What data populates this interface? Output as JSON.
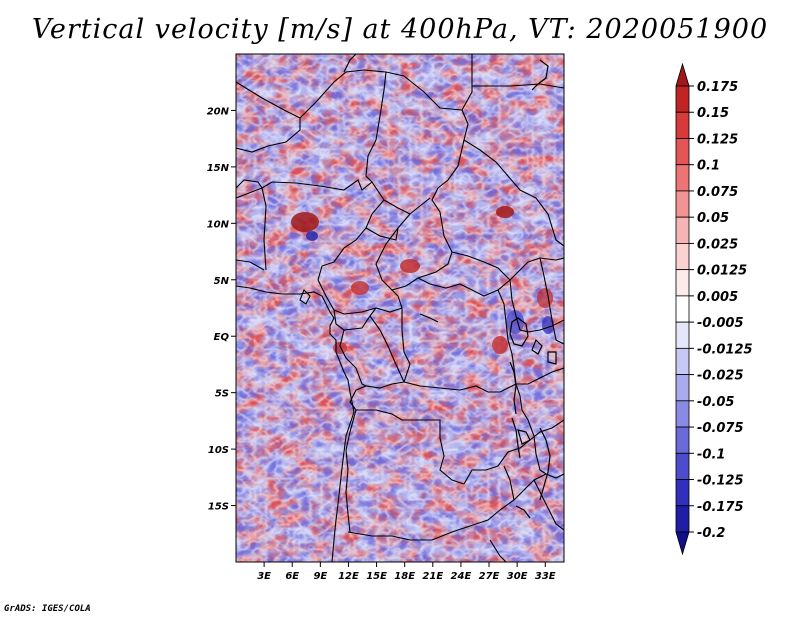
{
  "title": "Vertical velocity [m/s] at 400hPa, VT: 2020051900",
  "credit": "GrADS: IGES/COLA",
  "map": {
    "lon_range": [
      0,
      35
    ],
    "lat_range": [
      -20,
      25
    ],
    "lat_ticks": [
      {
        "value": 20,
        "label": "20N"
      },
      {
        "value": 15,
        "label": "15N"
      },
      {
        "value": 10,
        "label": "10N"
      },
      {
        "value": 5,
        "label": "5N"
      },
      {
        "value": 0,
        "label": "EQ"
      },
      {
        "value": -5,
        "label": "5S"
      },
      {
        "value": -10,
        "label": "10S"
      },
      {
        "value": -15,
        "label": "15S"
      }
    ],
    "lon_ticks": [
      {
        "value": 3,
        "label": "3E"
      },
      {
        "value": 6,
        "label": "6E"
      },
      {
        "value": 9,
        "label": "9E"
      },
      {
        "value": 12,
        "label": "12E"
      },
      {
        "value": 15,
        "label": "15E"
      },
      {
        "value": 18,
        "label": "18E"
      },
      {
        "value": 21,
        "label": "21E"
      },
      {
        "value": 24,
        "label": "24E"
      },
      {
        "value": 27,
        "label": "27E"
      },
      {
        "value": 30,
        "label": "30E"
      },
      {
        "value": 33,
        "label": "33E"
      }
    ]
  },
  "colorbar": {
    "labels": [
      "0.175",
      "0.15",
      "0.125",
      "0.1",
      "0.075",
      "0.05",
      "0.025",
      "0.0125",
      "0.005",
      "-0.005",
      "-0.0125",
      "-0.025",
      "-0.05",
      "-0.075",
      "-0.1",
      "-0.125",
      "-0.175",
      "-0.2"
    ],
    "colors": [
      "#a01818",
      "#c02424",
      "#d63a3a",
      "#e45555",
      "#ec7474",
      "#f29494",
      "#f6b4b4",
      "#fad2d2",
      "#fdeaea",
      "#ffffff",
      "#e6e6fa",
      "#c8c8f4",
      "#aaaaee",
      "#8a8ae4",
      "#6a6ad8",
      "#4c4ccc",
      "#3030bc",
      "#1e1ea6",
      "#10108a"
    ]
  }
}
